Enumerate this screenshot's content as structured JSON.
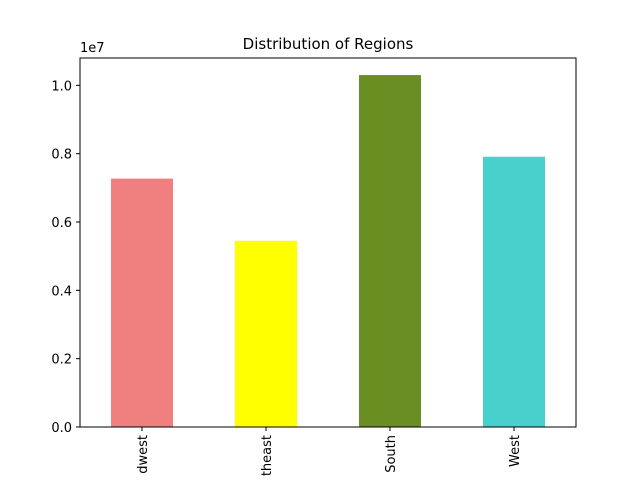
{
  "chart_data": {
    "type": "bar",
    "title": "Distribution of Regions",
    "xlabel": "",
    "ylabel": "",
    "categories": [
      "Midwest",
      "Northeast",
      "South",
      "West"
    ],
    "visible_tick_labels": [
      "dwest",
      "theast",
      "South",
      "West"
    ],
    "values": [
      7270000,
      5450000,
      10300000,
      7910000
    ],
    "ylim": [
      0,
      10800000
    ],
    "yticks": [
      "0.0",
      "0.2",
      "0.4",
      "0.6",
      "0.8",
      "1.0"
    ],
    "y_offset_label": "1e7",
    "colors": [
      "#f08080",
      "#ffff00",
      "#6b8e23",
      "#48d1cc"
    ],
    "grid": false,
    "legend": "none",
    "x_tick_rotation": "vertical"
  }
}
